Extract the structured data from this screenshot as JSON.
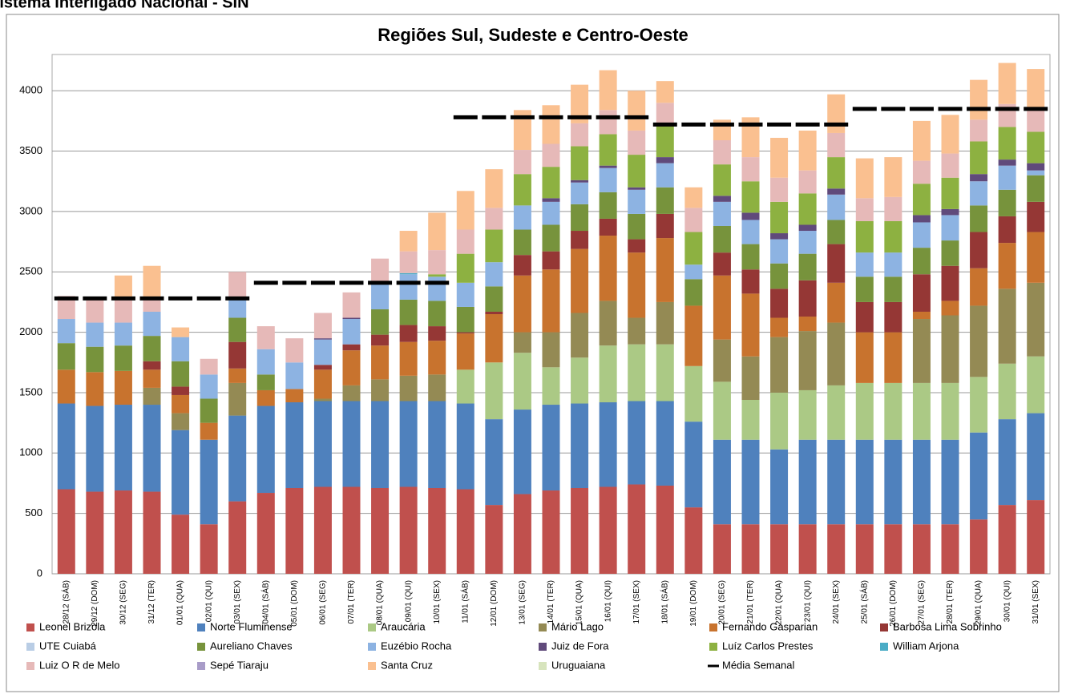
{
  "header": {
    "title": "Sistema Interligado Nacional - SIN"
  },
  "chart_data": {
    "type": "bar",
    "stacked": true,
    "title": "Regiões Sul, Sudeste e Centro-Oeste",
    "categories": [
      "28/12 (SÁB)",
      "29/12 (DOM)",
      "30/12 (SEG)",
      "31/12 (TER)",
      "01/01 (QUA)",
      "02/01 (QUI)",
      "03/01 (SEX)",
      "04/01 (SÁB)",
      "05/01 (DOM)",
      "06/01 (SEG)",
      "07/01 (TER)",
      "08/01 (QUA)",
      "09/01 (QUI)",
      "10/01 (SEX)",
      "11/01 (SÁB)",
      "12/01 (DOM)",
      "13/01 (SEG)",
      "14/01 (TER)",
      "15/01 (QUA)",
      "16/01 (QUI)",
      "17/01 (SEX)",
      "18/01 (SÁB)",
      "19/01 (DOM)",
      "20/01 (SEG)",
      "21/01 (TER)",
      "22/01 (QUA)",
      "23/01 (QUI)",
      "24/01 (SEX)",
      "25/01 (SÁB)",
      "26/01 (DOM)",
      "27/01 (SEG)",
      "28/01 (TER)",
      "29/01 (QUA)",
      "30/01 (QUI)",
      "31/01 (SEX)"
    ],
    "ylim": [
      0,
      4300
    ],
    "yticks": [
      0,
      500,
      1000,
      1500,
      2000,
      2500,
      3000,
      3500,
      4000
    ],
    "grid": true,
    "legend": "bottom",
    "series": [
      {
        "name": "Leonel Brizola",
        "color": "#c0504d",
        "values": [
          700,
          680,
          690,
          680,
          490,
          410,
          600,
          670,
          710,
          720,
          720,
          710,
          720,
          710,
          700,
          570,
          660,
          690,
          710,
          720,
          740,
          730,
          550,
          410,
          410,
          410,
          410,
          410,
          410,
          410,
          410,
          410,
          450,
          570,
          610
        ]
      },
      {
        "name": "Norte Fluminense",
        "color": "#4f81bd",
        "values": [
          710,
          710,
          710,
          720,
          700,
          700,
          710,
          720,
          710,
          710,
          710,
          720,
          710,
          720,
          710,
          710,
          700,
          710,
          700,
          700,
          690,
          700,
          710,
          700,
          700,
          620,
          700,
          700,
          700,
          700,
          700,
          700,
          720,
          710,
          720
        ]
      },
      {
        "name": "Araucária",
        "color": "#abc985",
        "values": [
          0,
          0,
          0,
          0,
          0,
          0,
          0,
          0,
          0,
          0,
          0,
          0,
          0,
          0,
          280,
          470,
          470,
          310,
          380,
          470,
          470,
          470,
          460,
          480,
          330,
          470,
          410,
          450,
          470,
          470,
          470,
          470,
          460,
          460,
          470
        ]
      },
      {
        "name": "Mário Lago",
        "color": "#948a54",
        "values": [
          0,
          0,
          0,
          140,
          140,
          0,
          270,
          0,
          0,
          20,
          130,
          180,
          210,
          220,
          0,
          0,
          170,
          290,
          370,
          370,
          220,
          350,
          0,
          350,
          360,
          460,
          490,
          520,
          0,
          0,
          530,
          560,
          590,
          620,
          610
        ]
      },
      {
        "name": "Fernando Gasparian",
        "color": "#c8732e",
        "values": [
          280,
          280,
          280,
          150,
          150,
          140,
          120,
          130,
          110,
          240,
          290,
          280,
          280,
          280,
          300,
          400,
          470,
          520,
          530,
          540,
          540,
          530,
          500,
          530,
          520,
          160,
          120,
          330,
          420,
          420,
          60,
          120,
          310,
          380,
          420
        ]
      },
      {
        "name": "Barbosa Lima Sobrinho",
        "color": "#953735",
        "values": [
          0,
          0,
          0,
          70,
          70,
          0,
          220,
          0,
          0,
          40,
          50,
          90,
          140,
          120,
          10,
          20,
          170,
          150,
          150,
          140,
          110,
          200,
          0,
          190,
          200,
          240,
          300,
          320,
          250,
          250,
          310,
          290,
          300,
          220,
          250
        ]
      },
      {
        "name": "UTE Cuiabá",
        "color": "#b9cde5",
        "values": [
          0,
          0,
          0,
          0,
          0,
          0,
          0,
          0,
          0,
          0,
          0,
          0,
          0,
          0,
          0,
          0,
          0,
          0,
          0,
          0,
          0,
          0,
          0,
          0,
          0,
          0,
          0,
          0,
          0,
          0,
          0,
          0,
          0,
          0,
          0
        ]
      },
      {
        "name": "Aureliano Chaves",
        "color": "#77933c",
        "values": [
          220,
          210,
          210,
          210,
          210,
          200,
          200,
          130,
          0,
          0,
          0,
          210,
          210,
          210,
          210,
          210,
          210,
          220,
          220,
          220,
          210,
          220,
          220,
          220,
          210,
          210,
          220,
          200,
          210,
          210,
          220,
          210,
          220,
          220,
          220
        ]
      },
      {
        "name": "Euzébio Rocha",
        "color": "#8db3e2",
        "values": [
          200,
          200,
          190,
          200,
          200,
          200,
          160,
          210,
          220,
          210,
          210,
          220,
          210,
          200,
          200,
          200,
          200,
          190,
          180,
          200,
          200,
          200,
          120,
          200,
          200,
          200,
          190,
          210,
          200,
          200,
          210,
          210,
          200,
          200,
          40
        ]
      },
      {
        "name": "Juiz de Fora",
        "color": "#604a7b",
        "values": [
          0,
          0,
          0,
          0,
          0,
          0,
          0,
          0,
          0,
          10,
          10,
          0,
          0,
          0,
          0,
          0,
          0,
          30,
          20,
          20,
          20,
          50,
          0,
          50,
          60,
          50,
          50,
          50,
          0,
          0,
          60,
          50,
          60,
          50,
          60
        ]
      },
      {
        "name": "Luíz Carlos Prestes",
        "color": "#8db141",
        "values": [
          0,
          0,
          0,
          0,
          0,
          0,
          0,
          0,
          0,
          0,
          0,
          0,
          0,
          20,
          240,
          270,
          260,
          260,
          280,
          260,
          270,
          260,
          270,
          260,
          260,
          260,
          260,
          260,
          260,
          260,
          260,
          260,
          270,
          270,
          260
        ]
      },
      {
        "name": "William Arjona",
        "color": "#4bacc6",
        "values": [
          0,
          0,
          0,
          0,
          0,
          0,
          0,
          0,
          0,
          0,
          0,
          0,
          10,
          0,
          0,
          0,
          0,
          0,
          0,
          0,
          0,
          0,
          0,
          0,
          0,
          0,
          0,
          0,
          0,
          0,
          0,
          0,
          0,
          0,
          0
        ]
      },
      {
        "name": "Luiz O R de Melo",
        "color": "#e6b9b8",
        "values": [
          190,
          190,
          200,
          110,
          0,
          130,
          220,
          190,
          200,
          210,
          210,
          200,
          180,
          200,
          200,
          180,
          200,
          190,
          190,
          200,
          200,
          190,
          200,
          200,
          200,
          200,
          190,
          200,
          190,
          200,
          190,
          200,
          180,
          190,
          200
        ]
      },
      {
        "name": "Sepé Tiaraju",
        "color": "#a89cc8",
        "values": [
          0,
          0,
          0,
          0,
          0,
          0,
          0,
          0,
          0,
          0,
          0,
          0,
          0,
          0,
          0,
          0,
          0,
          0,
          0,
          0,
          0,
          0,
          0,
          0,
          0,
          0,
          0,
          0,
          0,
          0,
          0,
          0,
          0,
          0,
          0
        ]
      },
      {
        "name": "Santa Cruz",
        "color": "#fac090",
        "values": [
          0,
          0,
          190,
          270,
          80,
          0,
          0,
          0,
          0,
          0,
          0,
          0,
          170,
          310,
          320,
          320,
          330,
          320,
          320,
          330,
          330,
          180,
          170,
          170,
          330,
          330,
          330,
          320,
          330,
          330,
          330,
          320,
          330,
          340,
          320
        ]
      },
      {
        "name": "Uruguaiana",
        "color": "#d7e4bd",
        "values": [
          0,
          0,
          0,
          0,
          0,
          0,
          0,
          0,
          0,
          0,
          0,
          0,
          0,
          0,
          0,
          0,
          0,
          0,
          0,
          0,
          0,
          0,
          0,
          0,
          0,
          0,
          0,
          0,
          0,
          0,
          0,
          0,
          0,
          0,
          0
        ]
      },
      {
        "name": "Média Semanal",
        "color": "#000000",
        "type": "line",
        "values": [
          2280,
          2280,
          2280,
          2280,
          2280,
          2280,
          2280,
          2410,
          2410,
          2410,
          2410,
          2410,
          2410,
          2410,
          3780,
          3780,
          3780,
          3780,
          3780,
          3780,
          3780,
          3720,
          3720,
          3720,
          3720,
          3720,
          3720,
          3720,
          3850,
          3850,
          3850,
          3850,
          3850,
          3850,
          3850
        ]
      }
    ]
  }
}
